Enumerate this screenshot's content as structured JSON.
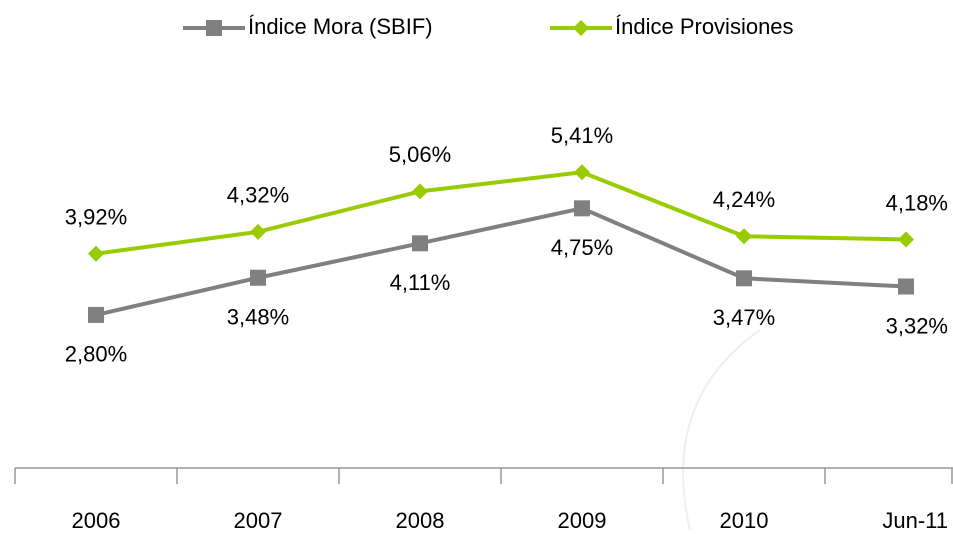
{
  "chart_data": {
    "type": "line",
    "categories": [
      "2006",
      "2007",
      "2008",
      "2009",
      "2010",
      "Jun-11"
    ],
    "series": [
      {
        "name": "Índice Mora (SBIF)",
        "color": "#808080",
        "marker": "square",
        "values": [
          2.8,
          3.48,
          4.11,
          4.75,
          3.47,
          3.32
        ],
        "value_labels": [
          "2,80%",
          "3,48%",
          "4,11%",
          "4,75%",
          "3,47%",
          "3,32%"
        ]
      },
      {
        "name": "Índice Provisiones",
        "color": "#99cc00",
        "marker": "diamond",
        "values": [
          3.92,
          4.32,
          5.06,
          5.41,
          4.24,
          4.18
        ],
        "value_labels": [
          "3,92%",
          "4,32%",
          "5,06%",
          "5,41%",
          "4,24%",
          "4,18%"
        ]
      }
    ],
    "ylim": [
      0,
      6
    ],
    "legend": "top"
  }
}
